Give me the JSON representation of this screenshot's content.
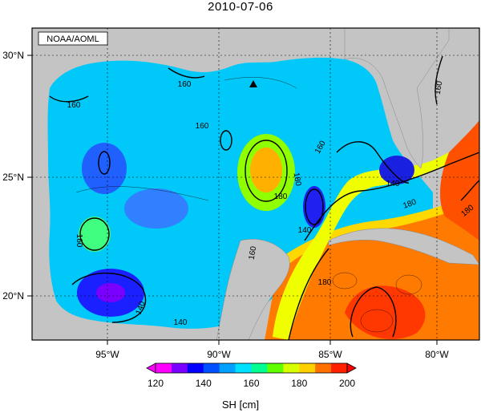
{
  "title": "2010-07-06",
  "credit": "NOAA/AOML",
  "variable_label": "SH [cm]",
  "axes": {
    "lon_ticks": [
      {
        "value": -95,
        "label": "95°W"
      },
      {
        "value": -90,
        "label": "90°W"
      },
      {
        "value": -85,
        "label": "85°W"
      },
      {
        "value": -80,
        "label": "80°W"
      }
    ],
    "lat_ticks": [
      {
        "value": 30,
        "label": "30°N"
      },
      {
        "value": 25,
        "label": "25°N"
      },
      {
        "value": 20,
        "label": "20°N"
      }
    ]
  },
  "colorbar": {
    "min": 120,
    "max": 200,
    "tick_labels": [
      "120",
      "140",
      "160",
      "180",
      "200"
    ],
    "colors": [
      "#ff00ff",
      "#7a00ff",
      "#0000ff",
      "#0050ff",
      "#00a0ff",
      "#00e0ff",
      "#00ff90",
      "#60ff00",
      "#d8ff00",
      "#ffd000",
      "#ff7000",
      "#ff2000"
    ]
  },
  "contour_labels": [
    "160",
    "160",
    "160",
    "160",
    "160",
    "160",
    "180",
    "180",
    "180",
    "140",
    "140",
    "140",
    "140",
    "180",
    "160",
    "180"
  ],
  "marker": "triangle-marker"
}
